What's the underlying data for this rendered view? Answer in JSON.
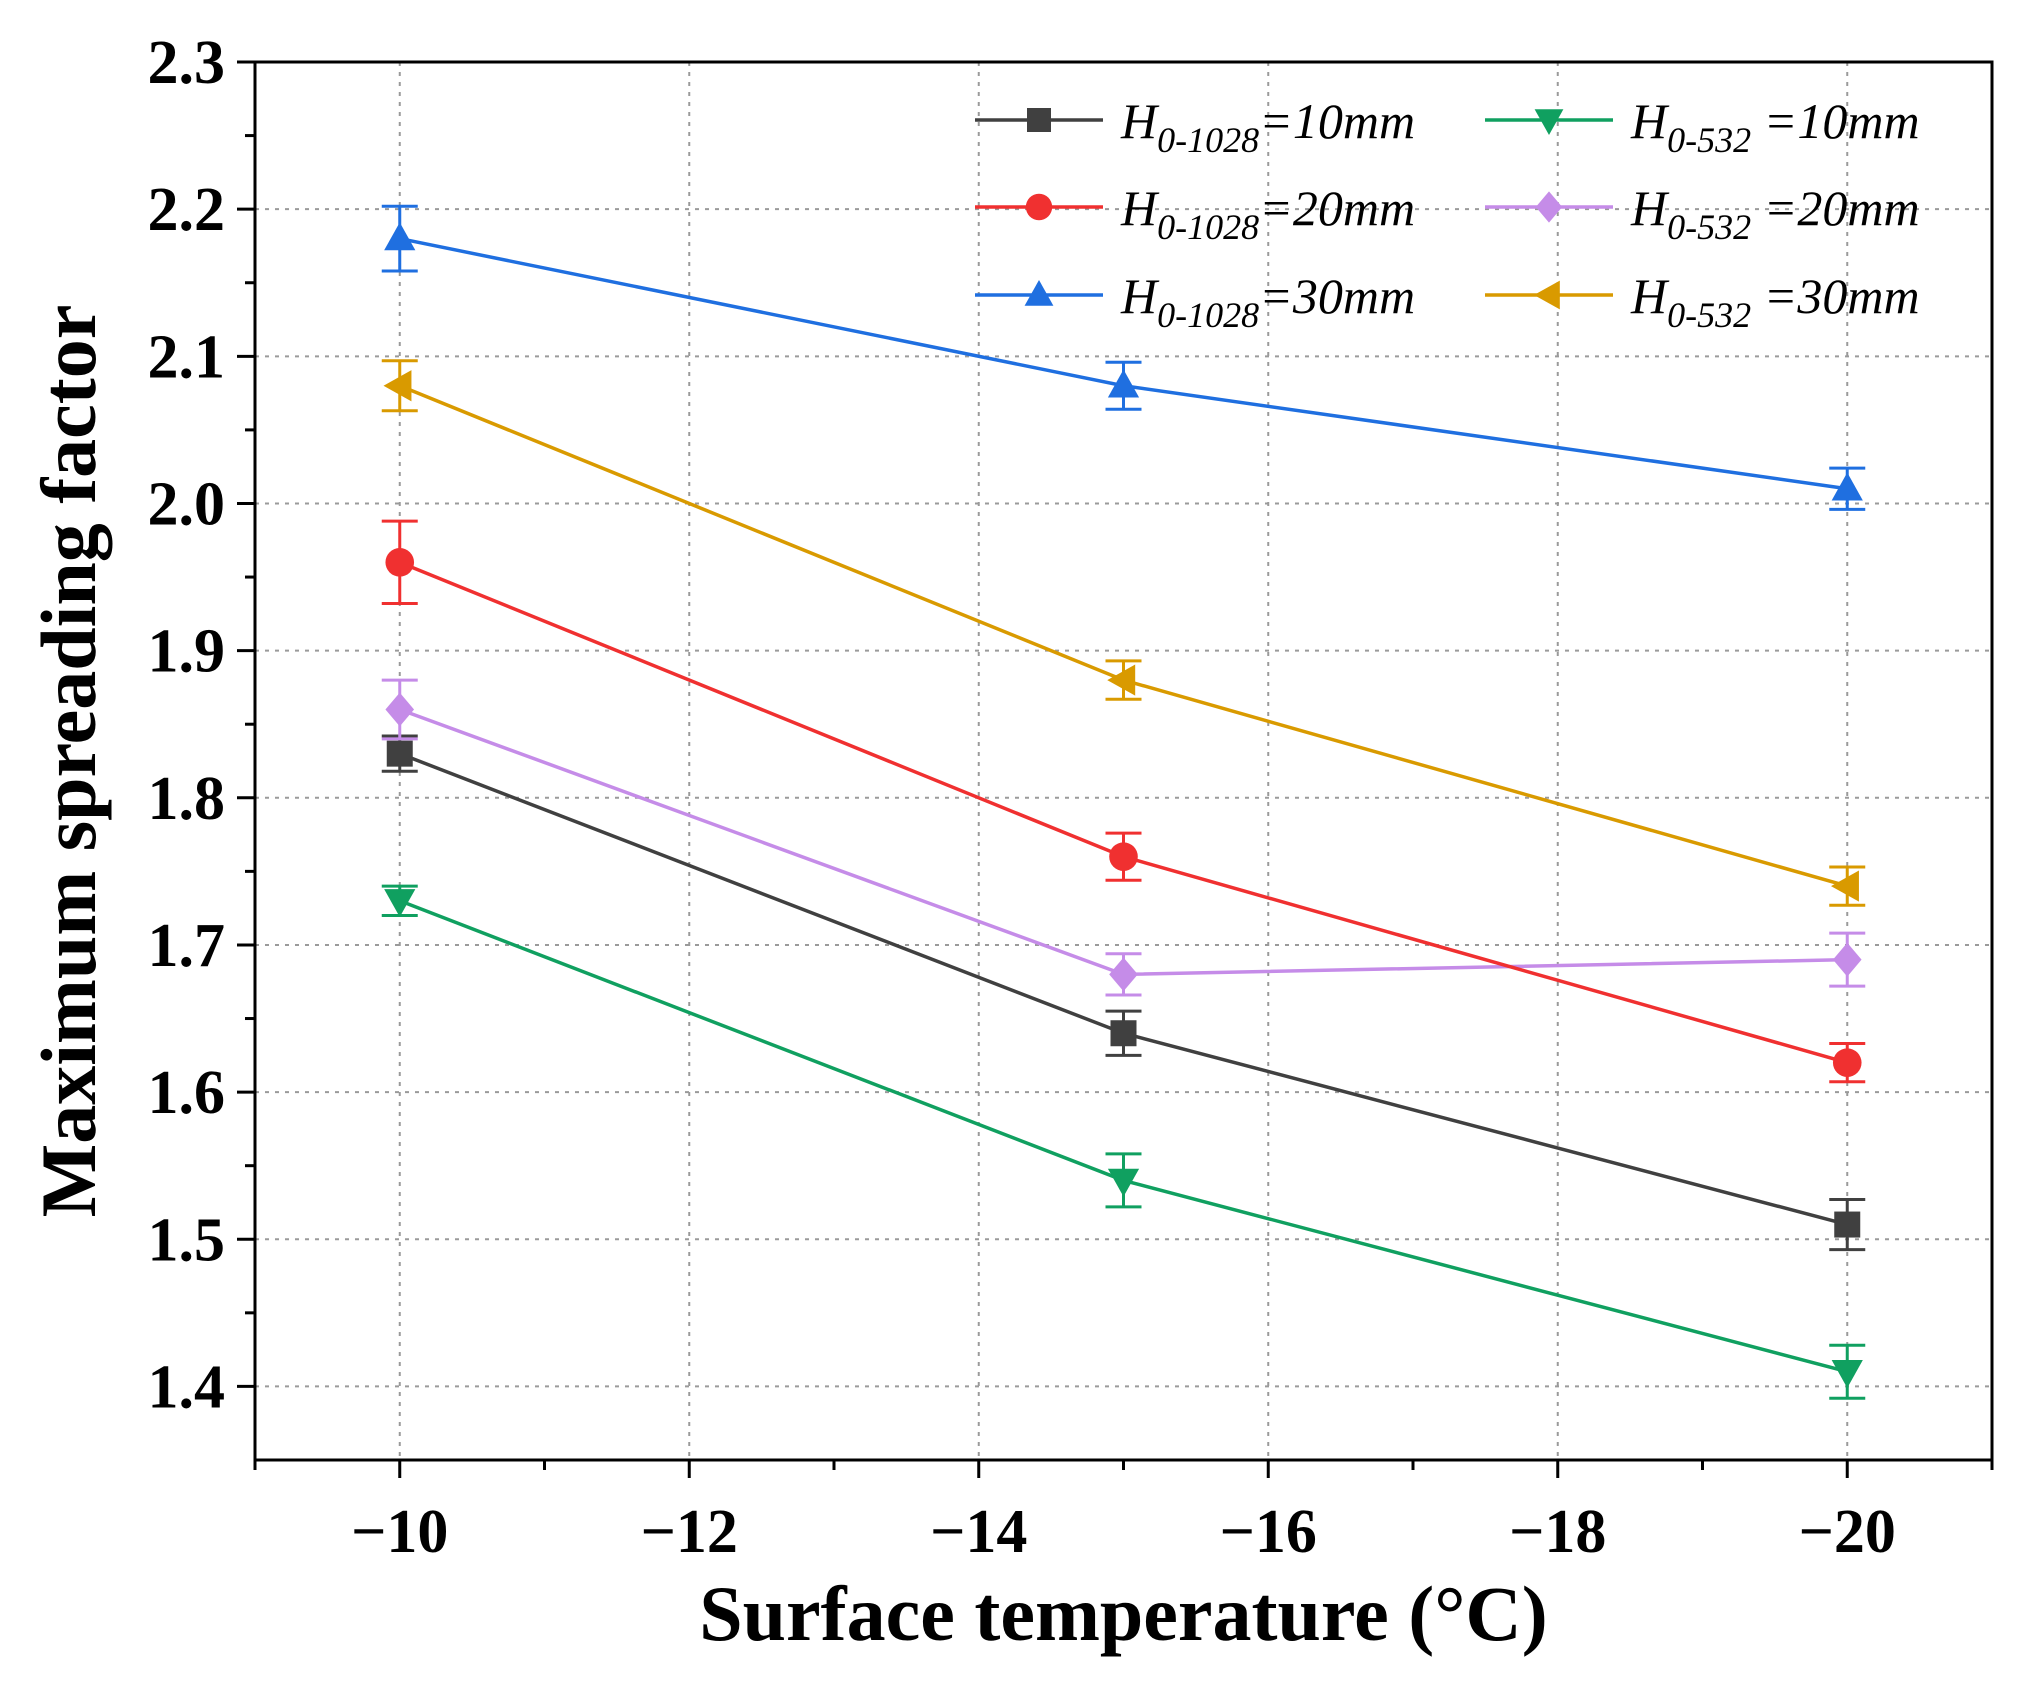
{
  "chart_data": {
    "type": "line",
    "title": "",
    "xlabel": "Surface temperature (°C)",
    "ylabel": "Maximum spreading factor",
    "x_reversed": true,
    "xlim": [
      -9,
      -21
    ],
    "ylim": [
      1.35,
      2.3
    ],
    "xticks": [
      -10,
      -12,
      -14,
      -16,
      -18,
      -20
    ],
    "xtick_labels": [
      "−10",
      "−12",
      "−14",
      "−16",
      "−18",
      "−20"
    ],
    "yticks": [
      1.4,
      1.5,
      1.6,
      1.7,
      1.8,
      1.9,
      2.0,
      2.1,
      2.2,
      2.3
    ],
    "ytick_labels": [
      "1.4",
      "1.5",
      "1.6",
      "1.7",
      "1.8",
      "1.9",
      "2.0",
      "2.1",
      "2.2",
      "2.3"
    ],
    "grid": true,
    "legend_position": "top-right",
    "x": [
      -10,
      -15,
      -20
    ],
    "series": [
      {
        "name": "H0-1028=10mm",
        "legend_main": "H",
        "legend_sub": "0-1028",
        "legend_rest": "=10mm",
        "color": "#404040",
        "marker": "square",
        "values": [
          1.83,
          1.64,
          1.51
        ],
        "errors": [
          0.012,
          0.015,
          0.017
        ]
      },
      {
        "name": "H0-1028=20mm",
        "legend_main": "H",
        "legend_sub": "0-1028",
        "legend_rest": "=20mm",
        "color": "#f03030",
        "marker": "circle",
        "values": [
          1.96,
          1.76,
          1.62
        ],
        "errors": [
          0.028,
          0.016,
          0.013
        ]
      },
      {
        "name": "H0-1028=30mm",
        "legend_main": "H",
        "legend_sub": "0-1028",
        "legend_rest": "=30mm",
        "color": "#1f6fe0",
        "marker": "triangle-up",
        "values": [
          2.18,
          2.08,
          2.01
        ],
        "errors": [
          0.022,
          0.016,
          0.014
        ]
      },
      {
        "name": "H0-532 =10mm",
        "legend_main": "H",
        "legend_sub": "0-532",
        "legend_rest": " =10mm",
        "color": "#10a060",
        "marker": "triangle-down",
        "values": [
          1.73,
          1.54,
          1.41
        ],
        "errors": [
          0.01,
          0.018,
          0.018
        ]
      },
      {
        "name": "H0-532 =20mm",
        "legend_main": "H",
        "legend_sub": "0-532",
        "legend_rest": " =20mm",
        "color": "#c58ce8",
        "marker": "diamond",
        "values": [
          1.86,
          1.68,
          1.69
        ],
        "errors": [
          0.02,
          0.014,
          0.018
        ]
      },
      {
        "name": "H0-532 =30mm",
        "legend_main": "H",
        "legend_sub": "0-532",
        "legend_rest": " =30mm",
        "color": "#d99a00",
        "marker": "triangle-left",
        "values": [
          2.08,
          1.88,
          1.74
        ],
        "errors": [
          0.017,
          0.013,
          0.013
        ]
      }
    ]
  }
}
